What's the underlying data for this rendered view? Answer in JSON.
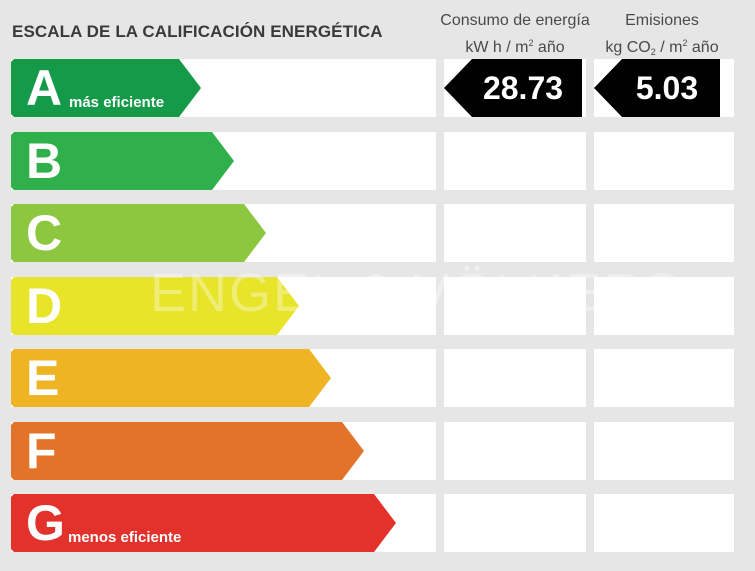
{
  "title": "ESCALA DE LA CALIFICACIÓN ENERGÉTICA",
  "columns": {
    "energy": {
      "line1": "Consumo de energía",
      "line2_pre": "kW h  / m",
      "sup": "2",
      "line2_post": " año"
    },
    "emissions": {
      "line1": "Emisiones",
      "line2_pre": "kg CO",
      "sub": "2",
      "line2_mid": "  / m",
      "sup": "2",
      "line2_post": " año"
    }
  },
  "watermark": "ENGEL & VÖLKERS",
  "chart_data": {
    "type": "table",
    "rating_scale": [
      {
        "letter": "A",
        "label": "más eficiente",
        "color": "#149a49"
      },
      {
        "letter": "B",
        "label": "",
        "color": "#2fb04a"
      },
      {
        "letter": "C",
        "label": "",
        "color": "#8dc63f"
      },
      {
        "letter": "D",
        "label": "",
        "color": "#e7e42a"
      },
      {
        "letter": "E",
        "label": "",
        "color": "#eeb423"
      },
      {
        "letter": "F",
        "label": "",
        "color": "#e27328"
      },
      {
        "letter": "G",
        "label": "menos eficiente",
        "color": "#e3322b"
      }
    ],
    "energy_consumption": {
      "rating": "A",
      "value": "28.73",
      "unit": "kW h / m² año"
    },
    "emissions": {
      "rating": "A",
      "value": "5.03",
      "unit": "kg CO₂ / m² año"
    }
  }
}
